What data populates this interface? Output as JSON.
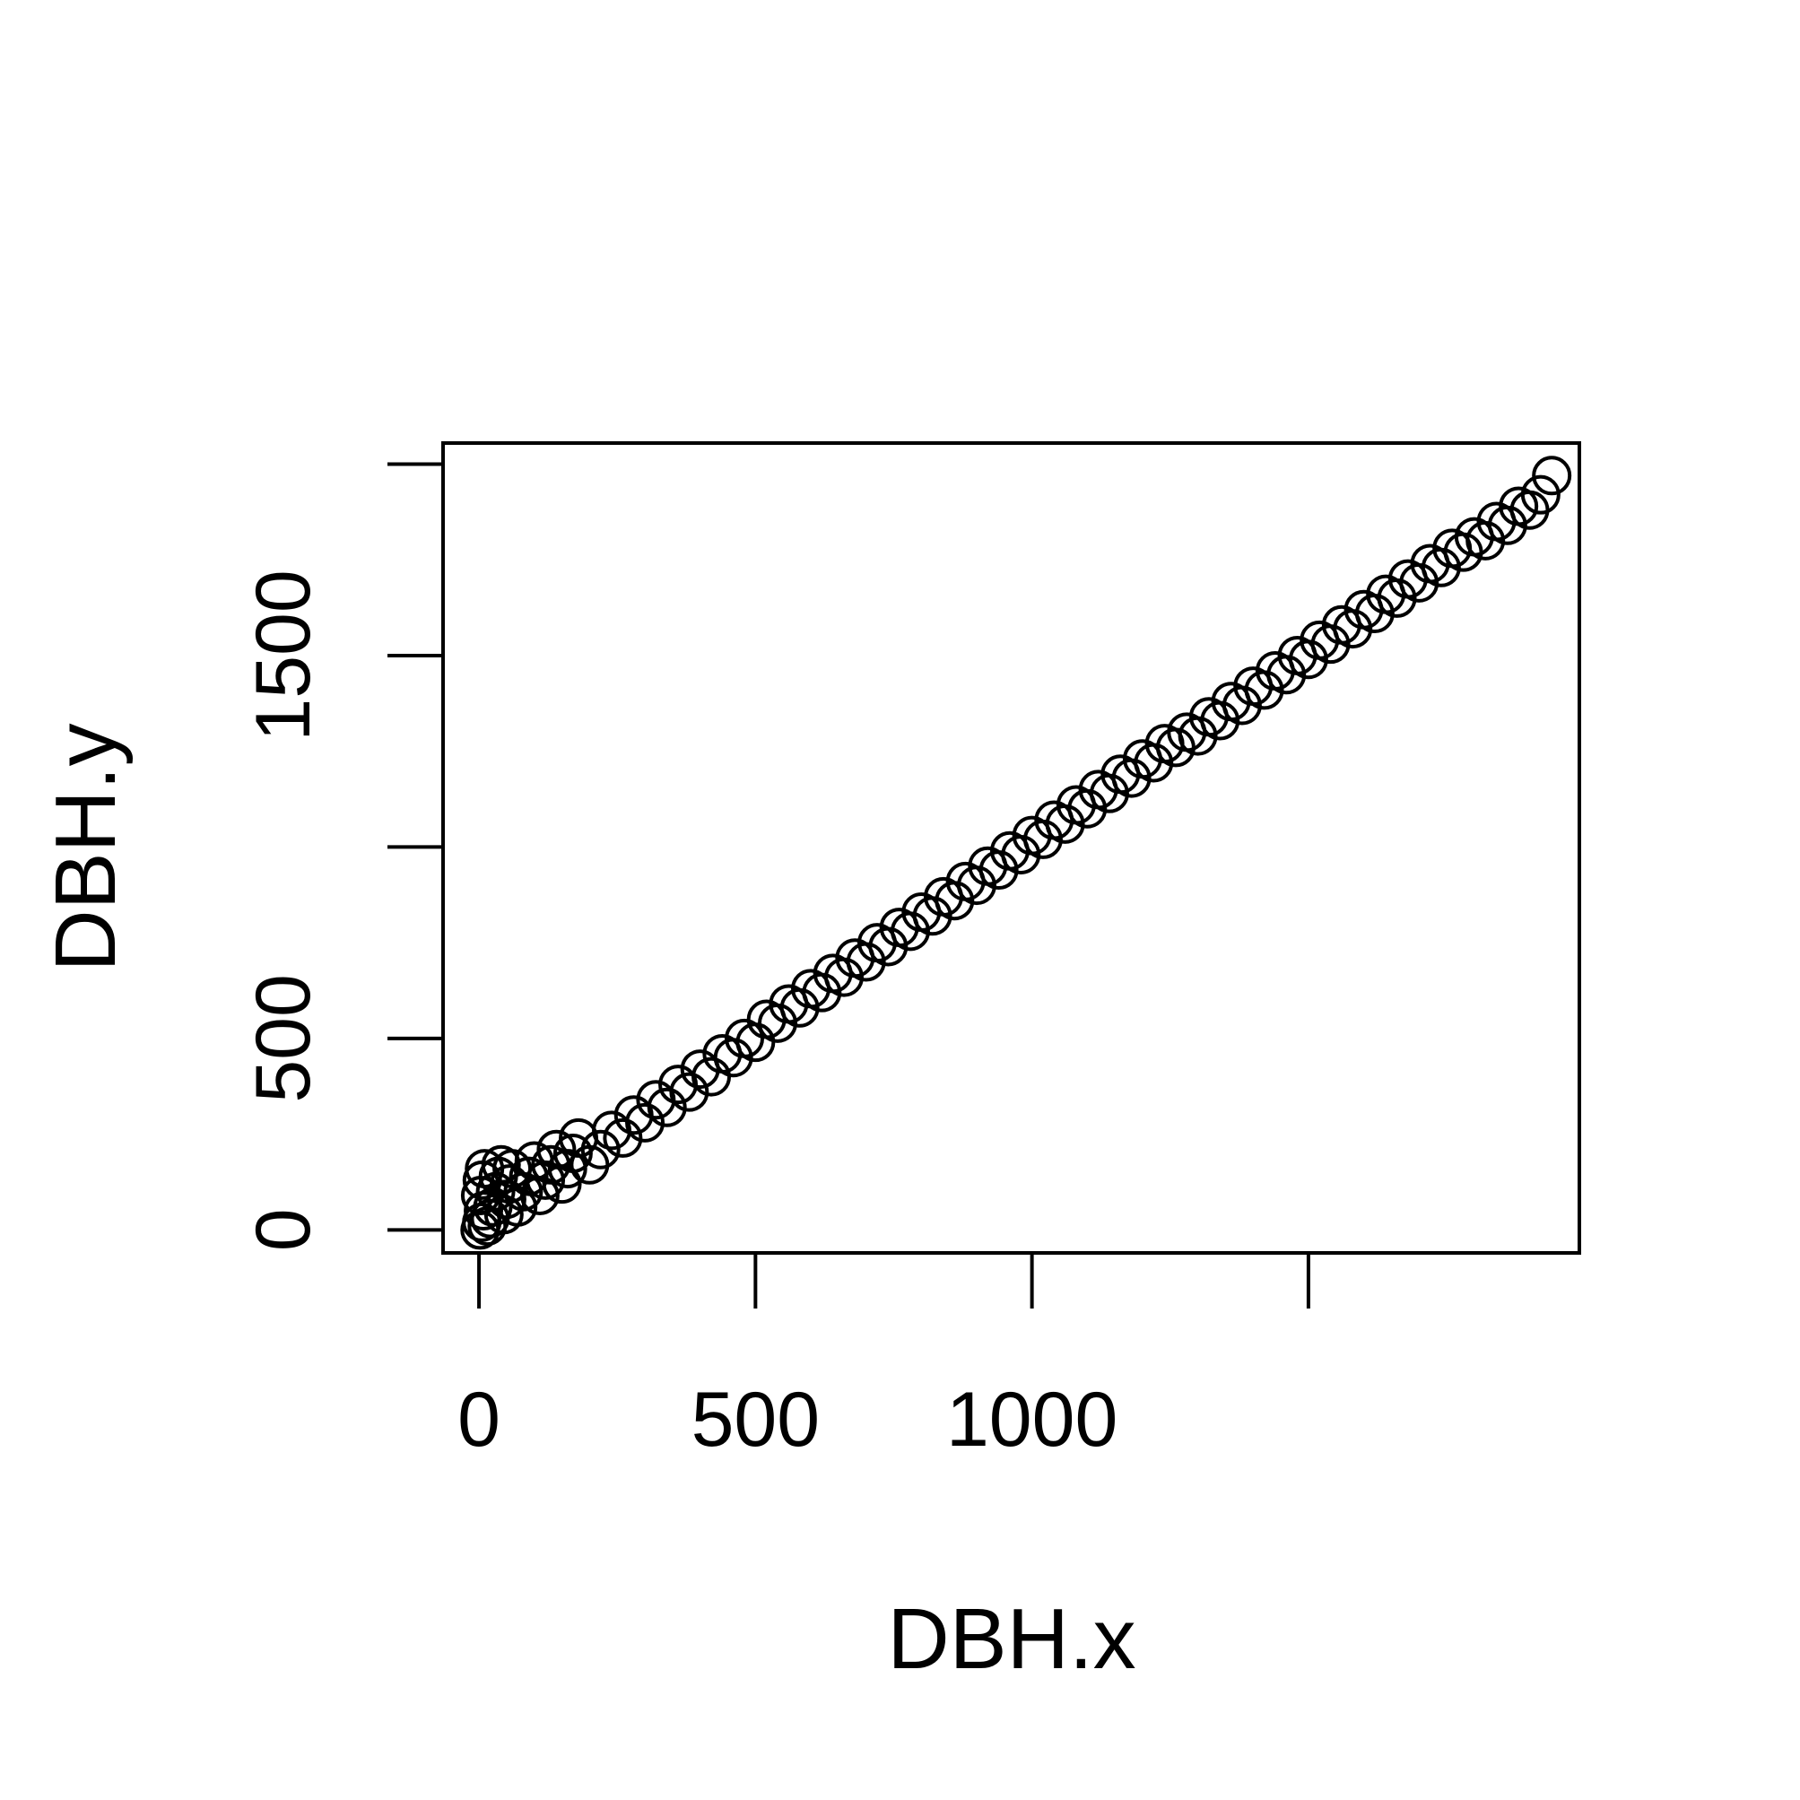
{
  "chart_data": {
    "type": "scatter",
    "title": "",
    "xlabel": "DBH.x",
    "ylabel": "DBH.y",
    "x_ticks": [
      0,
      500,
      1000,
      1500
    ],
    "x_tick_labels": [
      "0",
      "500",
      "1000",
      ""
    ],
    "y_ticks": [
      0,
      500,
      1000,
      1500,
      2000
    ],
    "y_tick_labels": [
      "0",
      "500",
      "",
      "1500",
      ""
    ],
    "xlim": [
      -65,
      1990
    ],
    "ylim": [
      -60,
      2055
    ],
    "grid": false,
    "legend": "none",
    "marker": "open-circle",
    "color": "#000000",
    "series": [
      {
        "points": [
          [
            2,
            0
          ],
          [
            5,
            20
          ],
          [
            8,
            50
          ],
          [
            3,
            90
          ],
          [
            6,
            130
          ],
          [
            10,
            160
          ],
          [
            15,
            10
          ],
          [
            20,
            30
          ],
          [
            25,
            60
          ],
          [
            30,
            100
          ],
          [
            35,
            140
          ],
          [
            40,
            170
          ],
          [
            45,
            40
          ],
          [
            50,
            80
          ],
          [
            55,
            120
          ],
          [
            60,
            160
          ],
          [
            70,
            60
          ],
          [
            80,
            100
          ],
          [
            90,
            140
          ],
          [
            100,
            180
          ],
          [
            110,
            90
          ],
          [
            120,
            130
          ],
          [
            130,
            170
          ],
          [
            140,
            210
          ],
          [
            150,
            120
          ],
          [
            160,
            160
          ],
          [
            170,
            200
          ],
          [
            180,
            240
          ],
          [
            200,
            170
          ],
          [
            220,
            210
          ],
          [
            240,
            260
          ],
          [
            260,
            240
          ],
          [
            280,
            300
          ],
          [
            300,
            280
          ],
          [
            320,
            340
          ],
          [
            340,
            320
          ],
          [
            360,
            380
          ],
          [
            380,
            360
          ],
          [
            400,
            420
          ],
          [
            420,
            400
          ],
          [
            440,
            460
          ],
          [
            460,
            450
          ],
          [
            480,
            500
          ],
          [
            500,
            490
          ],
          [
            520,
            550
          ],
          [
            540,
            540
          ],
          [
            560,
            590
          ],
          [
            580,
            580
          ],
          [
            600,
            630
          ],
          [
            620,
            620
          ],
          [
            640,
            670
          ],
          [
            660,
            660
          ],
          [
            680,
            710
          ],
          [
            700,
            700
          ],
          [
            720,
            750
          ],
          [
            740,
            740
          ],
          [
            760,
            790
          ],
          [
            780,
            780
          ],
          [
            800,
            830
          ],
          [
            820,
            820
          ],
          [
            840,
            870
          ],
          [
            860,
            860
          ],
          [
            880,
            910
          ],
          [
            900,
            900
          ],
          [
            920,
            950
          ],
          [
            940,
            940
          ],
          [
            960,
            990
          ],
          [
            980,
            980
          ],
          [
            1000,
            1030
          ],
          [
            1020,
            1020
          ],
          [
            1040,
            1070
          ],
          [
            1060,
            1060
          ],
          [
            1080,
            1110
          ],
          [
            1100,
            1100
          ],
          [
            1120,
            1150
          ],
          [
            1140,
            1140
          ],
          [
            1160,
            1190
          ],
          [
            1180,
            1180
          ],
          [
            1200,
            1230
          ],
          [
            1220,
            1220
          ],
          [
            1240,
            1270
          ],
          [
            1260,
            1260
          ],
          [
            1280,
            1300
          ],
          [
            1300,
            1290
          ],
          [
            1320,
            1340
          ],
          [
            1340,
            1330
          ],
          [
            1360,
            1380
          ],
          [
            1380,
            1370
          ],
          [
            1400,
            1420
          ],
          [
            1420,
            1410
          ],
          [
            1440,
            1460
          ],
          [
            1460,
            1450
          ],
          [
            1480,
            1500
          ],
          [
            1500,
            1490
          ],
          [
            1520,
            1540
          ],
          [
            1540,
            1530
          ],
          [
            1560,
            1580
          ],
          [
            1580,
            1570
          ],
          [
            1600,
            1620
          ],
          [
            1620,
            1610
          ],
          [
            1640,
            1660
          ],
          [
            1660,
            1650
          ],
          [
            1680,
            1700
          ],
          [
            1700,
            1690
          ],
          [
            1720,
            1740
          ],
          [
            1740,
            1730
          ],
          [
            1760,
            1780
          ],
          [
            1780,
            1770
          ],
          [
            1800,
            1810
          ],
          [
            1820,
            1800
          ],
          [
            1840,
            1850
          ],
          [
            1860,
            1840
          ],
          [
            1880,
            1890
          ],
          [
            1900,
            1880
          ],
          [
            1920,
            1920
          ],
          [
            1940,
            1970
          ]
        ]
      }
    ]
  }
}
